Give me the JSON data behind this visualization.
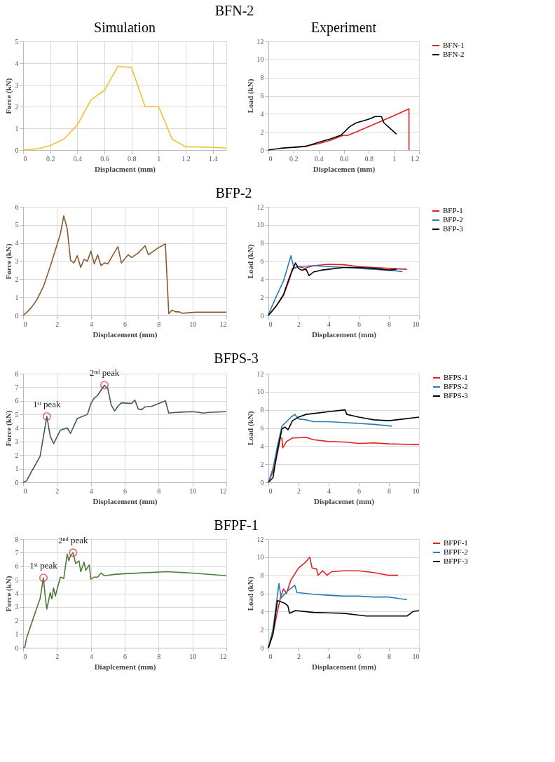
{
  "chart_data": [
    {
      "type": "line",
      "title": "BFN-2",
      "annotations": [
        "Simulation"
      ],
      "xlabel": "Displacment (mm)",
      "ylabel": "Force (kN)",
      "xlim": [
        0,
        1.5
      ],
      "xticks": [
        0,
        0.2,
        0.4,
        0.6,
        0.8,
        1,
        1.2,
        1.4
      ],
      "ylim": [
        0,
        5
      ],
      "yticks": [
        0,
        1,
        2,
        3,
        4,
        5
      ],
      "grid": true,
      "marker": "none",
      "line_style": "solid",
      "x": [
        0,
        0.1,
        0.2,
        0.3,
        0.4,
        0.5,
        0.6,
        0.7,
        0.8,
        0.9,
        1.0,
        1.1,
        1.2,
        1.4,
        1.5
      ],
      "series": [
        {
          "color": "#f2c12e",
          "values": [
            0,
            0.05,
            0.2,
            0.5,
            1.15,
            2.3,
            2.75,
            3.85,
            3.8,
            2.0,
            2.0,
            0.5,
            0.15,
            0.13,
            0.08
          ]
        }
      ]
    },
    {
      "type": "line",
      "annotations": [
        "Experiment"
      ],
      "xlabel": "Displacemen (mm)",
      "ylabel": "Load (kN)",
      "xlim": [
        0,
        1.2
      ],
      "xticks": [
        0,
        0.2,
        0.4,
        0.6,
        0.8,
        1,
        1.2
      ],
      "ylim": [
        0,
        12
      ],
      "yticks": [
        0,
        2,
        4,
        6,
        8,
        10,
        12
      ],
      "grid": "y",
      "legend": "right",
      "marker": "none",
      "line_style": "solid",
      "series": [
        {
          "name": "BFN-1",
          "color": "#e02020",
          "x": [
            0.2,
            0.3,
            0.4,
            0.5,
            0.6,
            0.63,
            0.7,
            0.8,
            0.9,
            1.0,
            1.12,
            1.12
          ],
          "values": [
            0.3,
            0.45,
            0.7,
            1.1,
            1.65,
            1.6,
            2.0,
            2.6,
            3.2,
            3.8,
            4.55,
            0
          ]
        },
        {
          "name": "BFN-2",
          "color": "#000000",
          "x": [
            0,
            0.1,
            0.2,
            0.3,
            0.4,
            0.5,
            0.58,
            0.65,
            0.7,
            0.8,
            0.85,
            0.9,
            0.92,
            0.96,
            1.02
          ],
          "values": [
            0,
            0.2,
            0.3,
            0.4,
            0.85,
            1.25,
            1.65,
            2.6,
            3.0,
            3.4,
            3.7,
            3.7,
            3.0,
            2.5,
            1.75
          ]
        }
      ]
    },
    {
      "type": "line",
      "title": "BFP-2",
      "xlabel": "Displacement (mm)",
      "ylabel": "Force (kN)",
      "xlim": [
        0,
        12
      ],
      "xticks": [
        0,
        2,
        4,
        6,
        8,
        10,
        12
      ],
      "ylim": [
        0,
        6
      ],
      "yticks": [
        0,
        1,
        2,
        3,
        4,
        5,
        6
      ],
      "grid": true,
      "marker": "none",
      "line_style": "solid",
      "x": [
        0,
        0.2,
        0.5,
        0.8,
        1.2,
        1.6,
        2.0,
        2.2,
        2.4,
        2.6,
        2.8,
        3.0,
        3.2,
        3.4,
        3.6,
        3.8,
        4.0,
        4.2,
        4.4,
        4.6,
        4.8,
        5.0,
        5.4,
        5.6,
        5.8,
        6.2,
        6.4,
        6.8,
        7.2,
        7.4,
        8.0,
        8.4,
        8.6,
        8.8,
        9.0,
        9.2,
        9.4,
        10.2,
        12
      ],
      "series": [
        {
          "color": "#8b5a2b",
          "values": [
            0,
            0.15,
            0.45,
            0.85,
            1.6,
            2.7,
            3.9,
            4.5,
            5.5,
            4.8,
            3.05,
            2.9,
            3.3,
            2.65,
            3.1,
            3.0,
            3.55,
            2.85,
            3.35,
            2.75,
            2.9,
            2.85,
            3.5,
            3.8,
            2.9,
            3.35,
            3.2,
            3.45,
            3.85,
            3.35,
            3.75,
            3.95,
            0.1,
            0.3,
            0.2,
            0.2,
            0.12,
            0.18,
            0.18
          ]
        }
      ]
    },
    {
      "type": "line",
      "xlabel": "Displacement (mm)",
      "ylabel": "Load (kN)",
      "xlim": [
        0,
        10
      ],
      "xticks": [
        0,
        2,
        4,
        6,
        8,
        10
      ],
      "ylim": [
        0,
        12
      ],
      "yticks": [
        0,
        2,
        4,
        6,
        8,
        10,
        12
      ],
      "grid": "y",
      "legend": "right",
      "marker": "none",
      "line_style": "solid",
      "series": [
        {
          "name": "BFP-1",
          "color": "#e02020",
          "x": [
            0,
            0.5,
            1,
            1.4,
            1.6,
            2,
            2.4,
            3,
            4,
            5,
            6,
            7,
            8,
            9.2
          ],
          "values": [
            0,
            1,
            2.2,
            4,
            5.2,
            5.4,
            5.2,
            5.5,
            5.65,
            5.6,
            5.4,
            5.3,
            5.2,
            5.1
          ]
        },
        {
          "name": "BFP-2",
          "color": "#2e7ab5",
          "x": [
            0,
            0.5,
            1,
            1.5,
            1.7,
            2,
            3,
            4,
            5,
            6,
            7,
            8,
            8.9
          ],
          "values": [
            0.1,
            2,
            3.8,
            6.6,
            5.2,
            5.4,
            5.5,
            5.4,
            5.3,
            5.2,
            5.1,
            5.0,
            4.85
          ]
        },
        {
          "name": "BFP-3",
          "color": "#000000",
          "x": [
            0,
            0.5,
            1,
            1.4,
            1.6,
            1.8,
            2,
            2.2,
            2.5,
            2.7,
            3,
            3.5,
            4,
            5,
            6,
            7,
            8,
            8.5
          ],
          "values": [
            0,
            1,
            2.3,
            4.2,
            5,
            5.8,
            5.2,
            5.0,
            5.1,
            4.4,
            4.8,
            5.0,
            5.1,
            5.3,
            5.3,
            5.2,
            5.0,
            5.1
          ]
        }
      ]
    },
    {
      "type": "line",
      "title": "BFPS-3",
      "xlabel": "Displacement (mm)",
      "ylabel": "Force (kN)",
      "xlim": [
        0,
        12
      ],
      "xticks": [
        0,
        2,
        4,
        6,
        8,
        10,
        12
      ],
      "ylim": [
        0,
        8
      ],
      "yticks": [
        0,
        1,
        2,
        3,
        4,
        5,
        6,
        7,
        8
      ],
      "grid": true,
      "marker": "none",
      "line_style": "solid",
      "annotations": [
        {
          "text": "1ˢᵗ peak",
          "x": 1.4,
          "y": 4.85
        },
        {
          "text": "2ⁿᵈ peak",
          "x": 4.8,
          "y": 7.15
        }
      ],
      "x": [
        0,
        0.2,
        0.5,
        1,
        1.4,
        1.6,
        1.8,
        2.2,
        2.6,
        2.8,
        3.2,
        3.8,
        4.0,
        4.2,
        4.4,
        4.8,
        5.0,
        5.2,
        5.4,
        5.6,
        5.8,
        6.4,
        6.6,
        6.8,
        7.0,
        7.2,
        7.6,
        8.4,
        8.6,
        9.0,
        10,
        10.4,
        10.6,
        11,
        12
      ],
      "series": [
        {
          "color": "#44546a",
          "values": [
            0,
            0.1,
            0.8,
            1.9,
            4.85,
            3.4,
            2.85,
            3.85,
            4.0,
            3.6,
            4.7,
            5.0,
            5.8,
            6.2,
            6.4,
            7.15,
            6.9,
            5.7,
            5.25,
            5.6,
            5.85,
            5.8,
            6.05,
            5.4,
            5.35,
            5.55,
            5.6,
            6.0,
            5.1,
            5.15,
            5.2,
            5.15,
            5.1,
            5.15,
            5.2
          ]
        }
      ]
    },
    {
      "type": "line",
      "xlabel": "Displacemet (mm)",
      "ylabel": "Load (kN)",
      "xlim": [
        0,
        10
      ],
      "xticks": [
        0,
        2,
        4,
        6,
        8,
        10
      ],
      "ylim": [
        0,
        12
      ],
      "yticks": [
        0,
        2,
        4,
        6,
        8,
        10,
        12
      ],
      "grid": "y",
      "legend": "right",
      "marker": "none",
      "line_style": "solid",
      "series": [
        {
          "name": "BFPS-1",
          "color": "#e02020",
          "x": [
            0,
            0.3,
            0.6,
            0.8,
            0.9,
            0.95,
            1.2,
            1.6,
            2.5,
            3,
            4,
            5,
            6,
            7,
            8,
            9,
            10
          ],
          "values": [
            0,
            1.2,
            3.2,
            4.9,
            4.9,
            3.8,
            4.5,
            4.9,
            4.95,
            4.7,
            4.5,
            4.45,
            4.3,
            4.35,
            4.25,
            4.2,
            4.15
          ]
        },
        {
          "name": "BFPS-2",
          "color": "#2e7ab5",
          "x": [
            0,
            0.3,
            0.6,
            0.9,
            1.2,
            1.5,
            1.75,
            2,
            2.5,
            3,
            4,
            5,
            6,
            7,
            8.2
          ],
          "values": [
            0,
            1.5,
            4,
            6.2,
            6.7,
            7.2,
            7.5,
            7.0,
            6.9,
            6.7,
            6.7,
            6.6,
            6.5,
            6.4,
            6.2
          ]
        },
        {
          "name": "BFPS-3",
          "color": "#000000",
          "x": [
            0,
            0.3,
            0.6,
            0.9,
            1.1,
            1.3,
            1.6,
            2,
            2.5,
            3,
            4,
            5.1,
            5.2,
            6,
            7,
            8,
            9,
            10
          ],
          "values": [
            0,
            0.5,
            3.5,
            5.9,
            6.1,
            5.8,
            6.8,
            7.2,
            7.5,
            7.6,
            7.8,
            8.0,
            7.5,
            7.2,
            6.9,
            6.8,
            7.0,
            7.2
          ]
        }
      ]
    },
    {
      "type": "line",
      "title": "BFPF-1",
      "xlabel": "Diaplcement (mm)",
      "ylabel": "Force (kN)",
      "xlim": [
        0,
        12
      ],
      "xticks": [
        0,
        2,
        4,
        6,
        8,
        10,
        12
      ],
      "ylim": [
        0,
        8
      ],
      "yticks": [
        0,
        1,
        2,
        3,
        4,
        5,
        6,
        7,
        8
      ],
      "grid": true,
      "marker": "none",
      "line_style": "solid",
      "annotations": [
        {
          "text": "1ˢᵗ peak",
          "x": 1.2,
          "y": 5.15
        },
        {
          "text": "2ⁿᵈ peak",
          "x": 2.95,
          "y": 7.0
        }
      ],
      "x": [
        0,
        0.1,
        0.2,
        0.5,
        0.8,
        1,
        1.2,
        1.3,
        1.4,
        1.6,
        1.7,
        1.8,
        1.9,
        2.2,
        2.4,
        2.6,
        2.7,
        2.8,
        2.95,
        3.1,
        3.3,
        3.4,
        3.6,
        3.7,
        3.9,
        4.0,
        4.2,
        4.4,
        4.6,
        4.8,
        5.4,
        6,
        8.5,
        10,
        12
      ],
      "series": [
        {
          "color": "#4e7a3a",
          "values": [
            0,
            0.05,
            0.7,
            1.8,
            2.9,
            3.6,
            5.15,
            3.8,
            2.85,
            4.05,
            3.6,
            4.4,
            3.8,
            5.2,
            5.1,
            6.9,
            6.4,
            6.8,
            7.0,
            6.2,
            6.4,
            5.6,
            6.3,
            5.7,
            6.1,
            5.05,
            5.2,
            5.2,
            5.5,
            5.3,
            5.4,
            5.45,
            5.6,
            5.5,
            5.3
          ]
        }
      ]
    },
    {
      "type": "line",
      "xlabel": "Displacement (mm)",
      "ylabel": "Load (kN)",
      "xlim": [
        0,
        10
      ],
      "xticks": [
        0,
        2,
        4,
        6,
        8,
        10
      ],
      "ylim": [
        0,
        12
      ],
      "yticks": [
        0,
        2,
        4,
        6,
        8,
        10,
        12
      ],
      "grid": "y",
      "legend": "right",
      "marker": "none",
      "line_style": "solid",
      "series": [
        {
          "name": "BFPF-1",
          "color": "#e02020",
          "x": [
            0,
            0.3,
            0.6,
            0.8,
            1.0,
            1.2,
            1.5,
            2,
            2.5,
            2.75,
            2.9,
            3.2,
            3.3,
            3.6,
            3.9,
            4.2,
            5,
            6,
            7,
            8,
            8.6
          ],
          "values": [
            0,
            1.5,
            4,
            5.5,
            6.5,
            6.0,
            7.5,
            8.8,
            9.5,
            10.0,
            8.8,
            8.7,
            8.0,
            8.5,
            8.0,
            8.4,
            8.5,
            8.5,
            8.3,
            8.0,
            8.0
          ]
        },
        {
          "name": "BFPF-2",
          "color": "#2e7ab5",
          "x": [
            0,
            0.3,
            0.5,
            0.7,
            0.85,
            1.0,
            1.3,
            1.75,
            1.9,
            3,
            4,
            5,
            6,
            7,
            8,
            9.2
          ],
          "values": [
            0,
            2,
            4.5,
            7.1,
            5.5,
            5.8,
            6.3,
            6.9,
            6.1,
            5.9,
            5.8,
            5.7,
            5.7,
            5.6,
            5.6,
            5.3
          ]
        },
        {
          "name": "BFPF-3",
          "color": "#000000",
          "x": [
            0,
            0.3,
            0.6,
            0.8,
            1.1,
            1.3,
            1.4,
            1.8,
            3,
            4,
            5,
            6.5,
            8,
            9.2,
            9.6,
            10
          ],
          "values": [
            0,
            1.5,
            5.2,
            5.1,
            4.9,
            4.6,
            3.8,
            4.1,
            3.9,
            3.85,
            3.8,
            3.5,
            3.5,
            3.5,
            4.0,
            4.1
          ]
        }
      ]
    }
  ]
}
